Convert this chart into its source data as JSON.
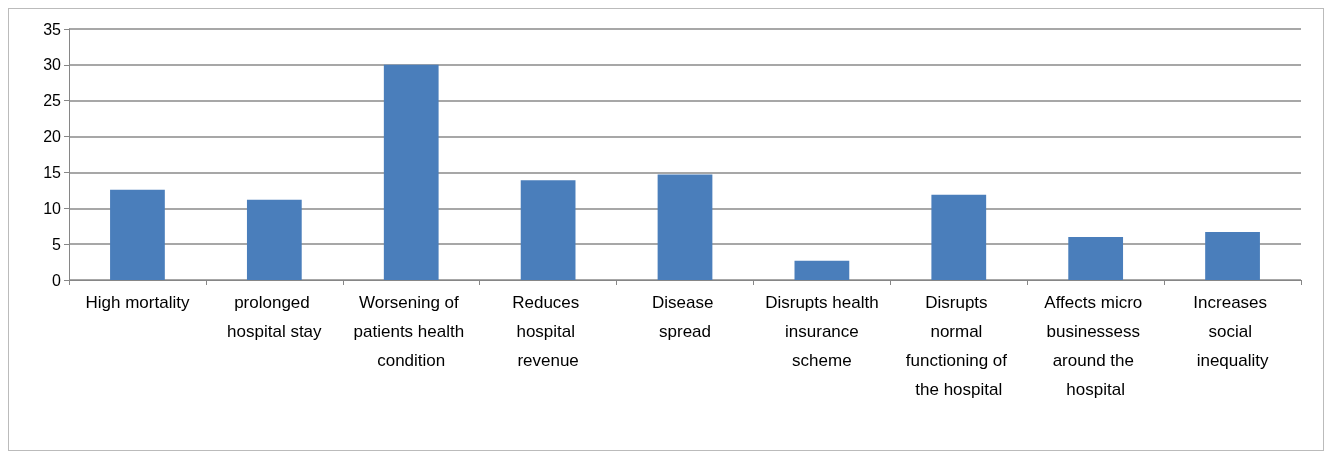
{
  "chart_data": {
    "type": "bar",
    "categories": [
      "High mortality",
      "prolonged hospital stay",
      "Worsening of patients health condition",
      "Reduces hospital revenue",
      "Disease spread",
      "Disrupts health insurance scheme",
      "Disrupts normal functioning of the hospital",
      "Affects micro businessess around the hospital",
      "Increases social inequality"
    ],
    "values": [
      12.6,
      11.2,
      30,
      13.9,
      14.7,
      2.7,
      11.9,
      6.0,
      6.7
    ],
    "color": "#4a7ebb",
    "ylim": [
      0,
      35
    ],
    "yticks": [
      0,
      5,
      10,
      15,
      20,
      25,
      30,
      35
    ],
    "grid": "y"
  }
}
